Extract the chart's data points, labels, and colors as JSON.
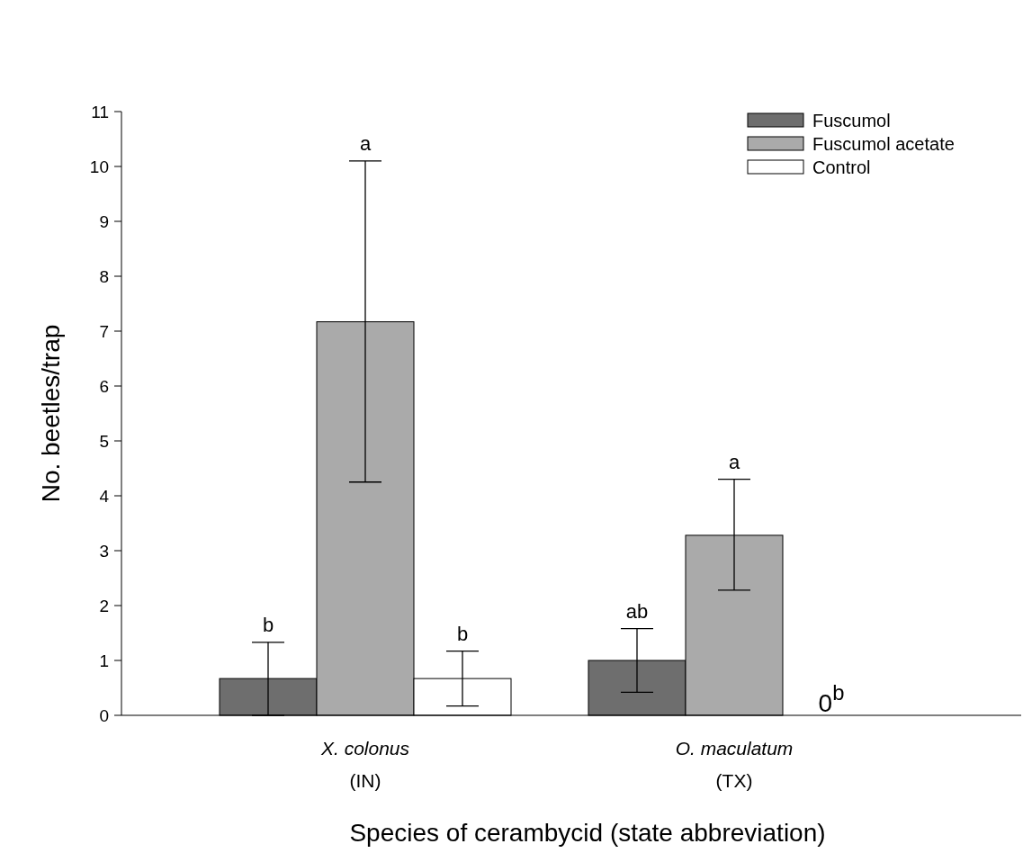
{
  "chart_data": {
    "type": "bar",
    "xlabel": "Species of cerambycid (state abbreviation)",
    "ylabel": "No. beetles/trap",
    "categories": [
      "X. colonus\n(IN)",
      "O. maculatum\n(TX)"
    ],
    "series": [
      {
        "name": "Fuscumol",
        "color": "#6e6e6e",
        "values": [
          0.67,
          1.0
        ],
        "errors": [
          [
            0.0,
            1.33
          ],
          [
            0.42,
            1.58
          ]
        ]
      },
      {
        "name": "Fuscumol acetate",
        "color": "#aaaaaa",
        "values": [
          7.17,
          3.28
        ],
        "errors": [
          [
            4.25,
            10.1
          ],
          [
            2.28,
            4.3
          ]
        ]
      },
      {
        "name": "Control",
        "color": "#ffffff",
        "values": [
          0.67,
          0
        ],
        "errors": [
          [
            0.17,
            1.17
          ],
          null
        ]
      }
    ],
    "ylim": [
      0,
      11
    ],
    "yticks": [
      0,
      1,
      2,
      3,
      4,
      5,
      6,
      7,
      8,
      9,
      10,
      11
    ],
    "grid": false,
    "legend": "top right",
    "annotations": [
      "b",
      "a",
      "b",
      "ab",
      "a",
      "0$^{b}$"
    ]
  }
}
